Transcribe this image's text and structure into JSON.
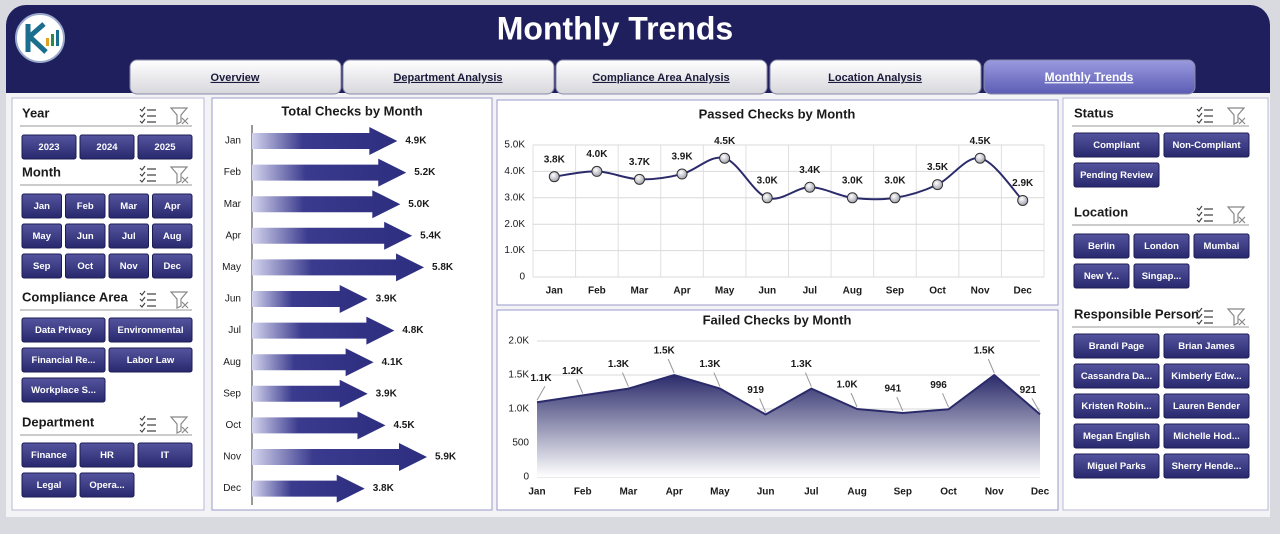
{
  "header": {
    "title": "Monthly Trends"
  },
  "tabs": [
    {
      "label": "Overview",
      "active": false
    },
    {
      "label": "Department Analysis",
      "active": false
    },
    {
      "label": "Compliance Area Analysis",
      "active": false
    },
    {
      "label": "Location Analysis",
      "active": false
    },
    {
      "label": "Monthly Trends",
      "active": true
    }
  ],
  "left_slicers": [
    {
      "title": "Year",
      "items": [
        "2023",
        "2024",
        "2025"
      ]
    },
    {
      "title": "Month",
      "items": [
        "Jan",
        "Feb",
        "Mar",
        "Apr",
        "May",
        "Jun",
        "Jul",
        "Aug",
        "Sep",
        "Oct",
        "Nov",
        "Dec"
      ]
    },
    {
      "title": "Compliance Area",
      "items": [
        "Data Privacy",
        "Environmental",
        "Financial Re...",
        "Labor Law",
        "Workplace S..."
      ]
    },
    {
      "title": "Department",
      "items": [
        "Finance",
        "HR",
        "IT",
        "Legal",
        "Opera..."
      ]
    }
  ],
  "right_slicers": [
    {
      "title": "Status",
      "items": [
        "Compliant",
        "Non-Compliant",
        "Pending Review"
      ]
    },
    {
      "title": "Location",
      "items": [
        "Berlin",
        "London",
        "Mumbai",
        "New Y...",
        "Singap..."
      ]
    },
    {
      "title": "Responsible Person",
      "items": [
        "Brandi Page",
        "Brian James",
        "Cassandra Da...",
        "Kimberly Edw...",
        "Kristen Robin...",
        "Lauren Bender",
        "Megan English",
        "Michelle Hod...",
        "Miguel Parks",
        "Sherry Hende..."
      ]
    }
  ],
  "chart_data": [
    {
      "type": "arrow",
      "title": "Total Checks by Month",
      "categories": [
        "Jan",
        "Feb",
        "Mar",
        "Apr",
        "May",
        "Jun",
        "Jul",
        "Aug",
        "Sep",
        "Oct",
        "Nov",
        "Dec"
      ],
      "values": [
        4900,
        5200,
        5000,
        5400,
        5800,
        3900,
        4800,
        4100,
        3900,
        4500,
        5900,
        3800
      ],
      "value_labels": [
        "4.9K",
        "5.2K",
        "5.0K",
        "5.4K",
        "5.8K",
        "3.9K",
        "4.8K",
        "4.1K",
        "3.9K",
        "4.5K",
        "5.9K",
        "3.8K"
      ],
      "color": "#2e2e80"
    },
    {
      "type": "line",
      "title": "Passed Checks by Month",
      "categories": [
        "Jan",
        "Feb",
        "Mar",
        "Apr",
        "May",
        "Jun",
        "Jul",
        "Aug",
        "Sep",
        "Oct",
        "Nov",
        "Dec"
      ],
      "values": [
        3800,
        4000,
        3700,
        3900,
        4500,
        3000,
        3400,
        3000,
        3000,
        3500,
        4500,
        2900
      ],
      "value_labels": [
        "3.8K",
        "4.0K",
        "3.7K",
        "3.9K",
        "4.5K",
        "3.0K",
        "3.4K",
        "3.0K",
        "3.0K",
        "3.5K",
        "4.5K",
        "2.9K"
      ],
      "color": "#2b2b6b",
      "smooth": true,
      "grid": true,
      "ylim": [
        0,
        5000
      ],
      "yticks": [
        0,
        {
          "value": 1000,
          "label": "1.0K"
        },
        {
          "value": 2000,
          "label": "2.0K"
        },
        {
          "value": 3000,
          "label": "3.0K"
        },
        {
          "value": 4000,
          "label": "4.0K"
        },
        {
          "value": 5000,
          "label": "5.0K"
        }
      ]
    },
    {
      "type": "area",
      "title": "Failed Checks by Month",
      "categories": [
        "Jan",
        "Feb",
        "Mar",
        "Apr",
        "May",
        "Jun",
        "Jul",
        "Aug",
        "Sep",
        "Oct",
        "Nov",
        "Dec"
      ],
      "values": [
        1100,
        1200,
        1300,
        1500,
        1300,
        919,
        1300,
        1000,
        941,
        996,
        1500,
        921
      ],
      "value_labels": [
        "1.1K",
        "1.2K",
        "1.3K",
        "1.5K",
        "1.3K",
        "919",
        "1.3K",
        "1.0K",
        "941",
        "996",
        "1.5K",
        "921"
      ],
      "color": "#2b2b6b",
      "grid": true,
      "ylim": [
        0,
        2000
      ],
      "yticks": [
        0,
        500,
        {
          "value": 1000,
          "label": "1.0K"
        },
        {
          "value": 1500,
          "label": "1.5K"
        },
        {
          "value": 2000,
          "label": "2.0K"
        }
      ]
    }
  ]
}
